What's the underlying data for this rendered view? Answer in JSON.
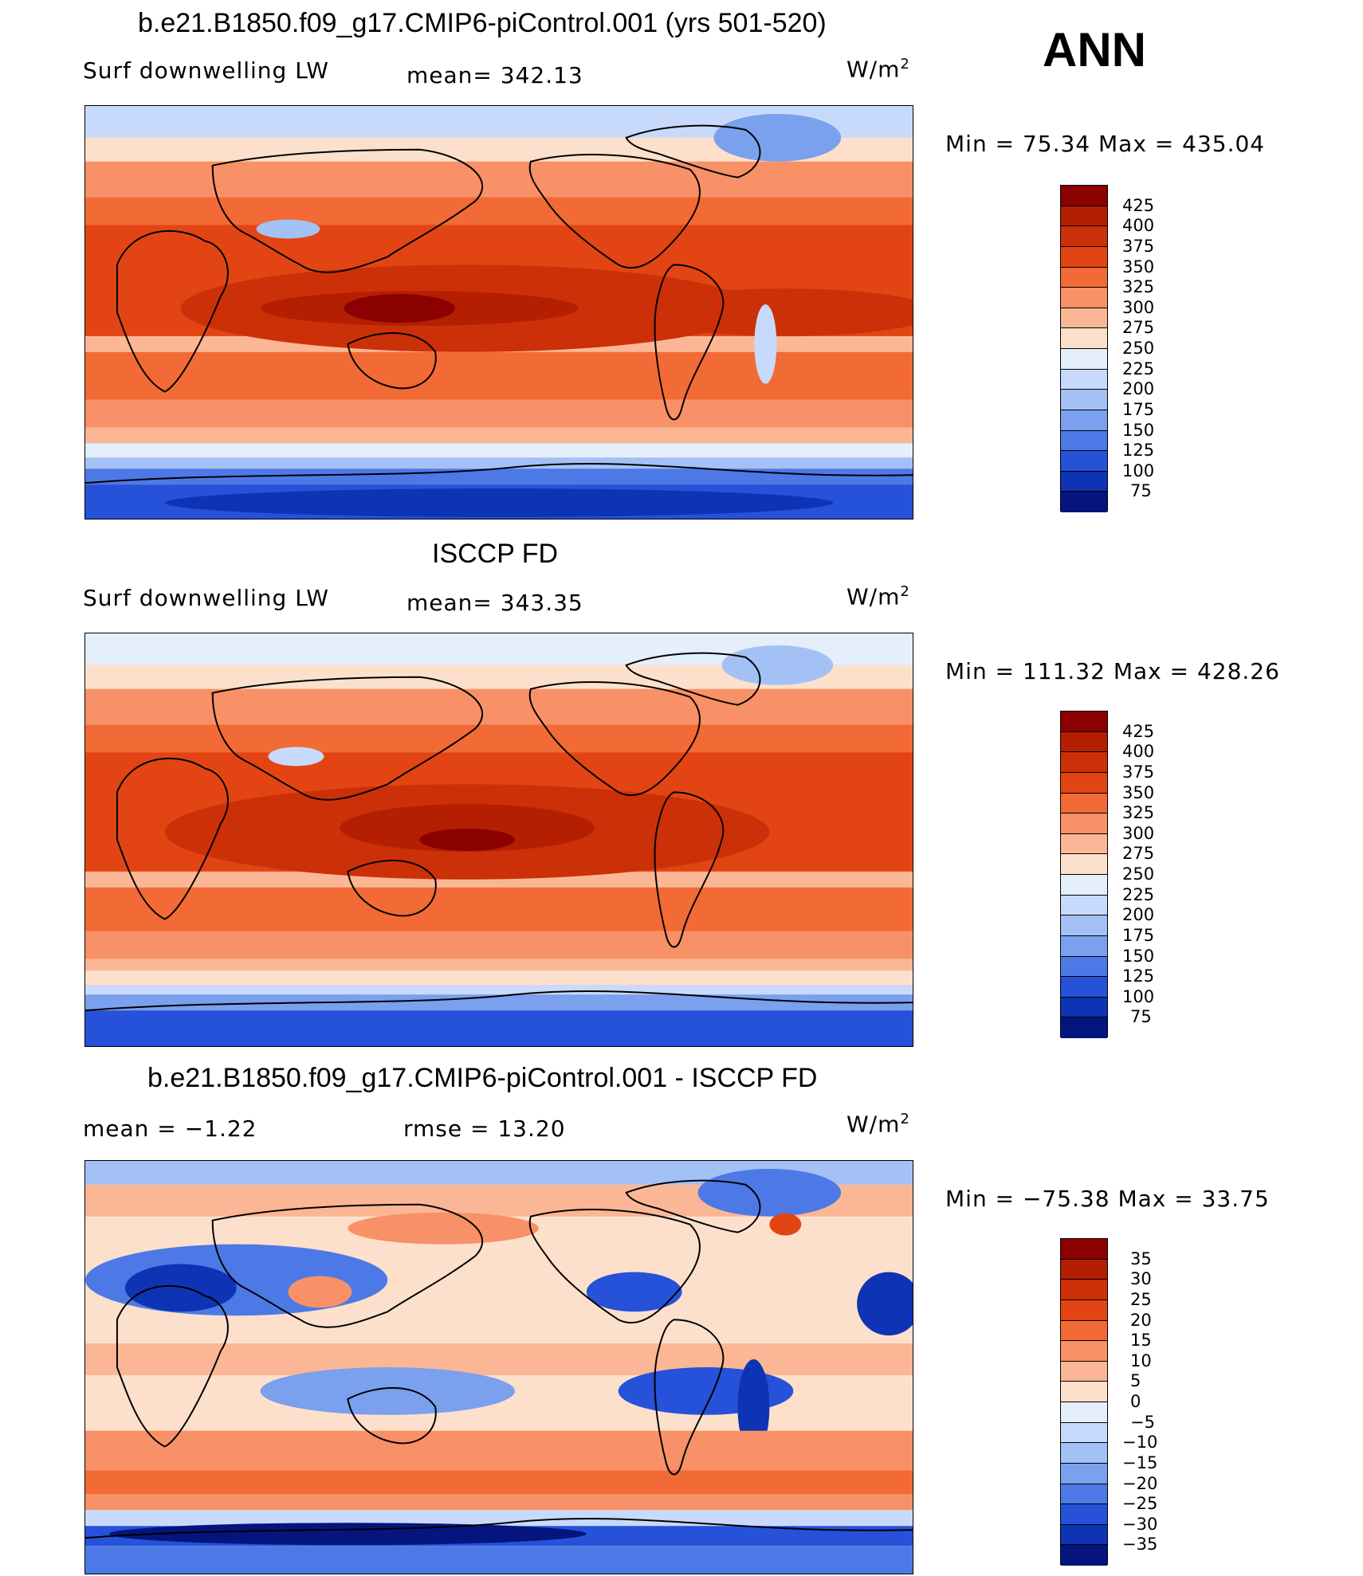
{
  "season": "ANN",
  "panels": [
    {
      "title": "b.e21.B1850.f09_g17.CMIP6-piControl.001 (yrs 501-520)",
      "left_label": "Surf  downwelling  LW",
      "center_label": "mean=  342.13",
      "units_base": "W/m",
      "units_exp": "2",
      "minmax": "Min  =    75.34  Max  =  435.04",
      "legend_levels": [
        "425",
        "400",
        "375",
        "350",
        "325",
        "300",
        "275",
        "250",
        "225",
        "200",
        "175",
        "150",
        "125",
        "100",
        "75"
      ],
      "legend_colors": [
        "#8b0000",
        "#b41f02",
        "#cc3008",
        "#e24513",
        "#f26a36",
        "#f89167",
        "#fbb795",
        "#fde0cc",
        "#e5eefb",
        "#c8dafb",
        "#a4c1f6",
        "#7aa0ee",
        "#4d79e6",
        "#2552d9",
        "#0f33b5",
        "#05157e"
      ]
    },
    {
      "title": "ISCCP FD",
      "left_label": "Surf  downwelling  LW",
      "center_label": "mean=  343.35",
      "units_base": "W/m",
      "units_exp": "2",
      "minmax": "Min  =  111.32  Max  =  428.26",
      "legend_levels": [
        "425",
        "400",
        "375",
        "350",
        "325",
        "300",
        "275",
        "250",
        "225",
        "200",
        "175",
        "150",
        "125",
        "100",
        "75"
      ],
      "legend_colors": [
        "#8b0000",
        "#b41f02",
        "#cc3008",
        "#e24513",
        "#f26a36",
        "#f89167",
        "#fbb795",
        "#fde0cc",
        "#e5eefb",
        "#c8dafb",
        "#a4c1f6",
        "#7aa0ee",
        "#4d79e6",
        "#2552d9",
        "#0f33b5",
        "#05157e"
      ]
    },
    {
      "title": "b.e21.B1850.f09_g17.CMIP6-piControl.001 - ISCCP FD",
      "left_label": "mean  =    −1.22",
      "center_label": "rmse  =    13.20",
      "units_base": "W/m",
      "units_exp": "2",
      "minmax": "Min  =  −75.38  Max  =    33.75",
      "legend_levels": [
        "35",
        "30",
        "25",
        "20",
        "15",
        "10",
        "5",
        "0",
        "−5",
        "−10",
        "−15",
        "−20",
        "−25",
        "−30",
        "−35"
      ],
      "legend_colors": [
        "#8b0000",
        "#b41f02",
        "#cc3008",
        "#e24513",
        "#f26a36",
        "#f89167",
        "#fbb795",
        "#fde0cc",
        "#e5eefb",
        "#c8dafb",
        "#a4c1f6",
        "#7aa0ee",
        "#4d79e6",
        "#2552d9",
        "#0f33b5",
        "#05157e"
      ]
    }
  ]
}
